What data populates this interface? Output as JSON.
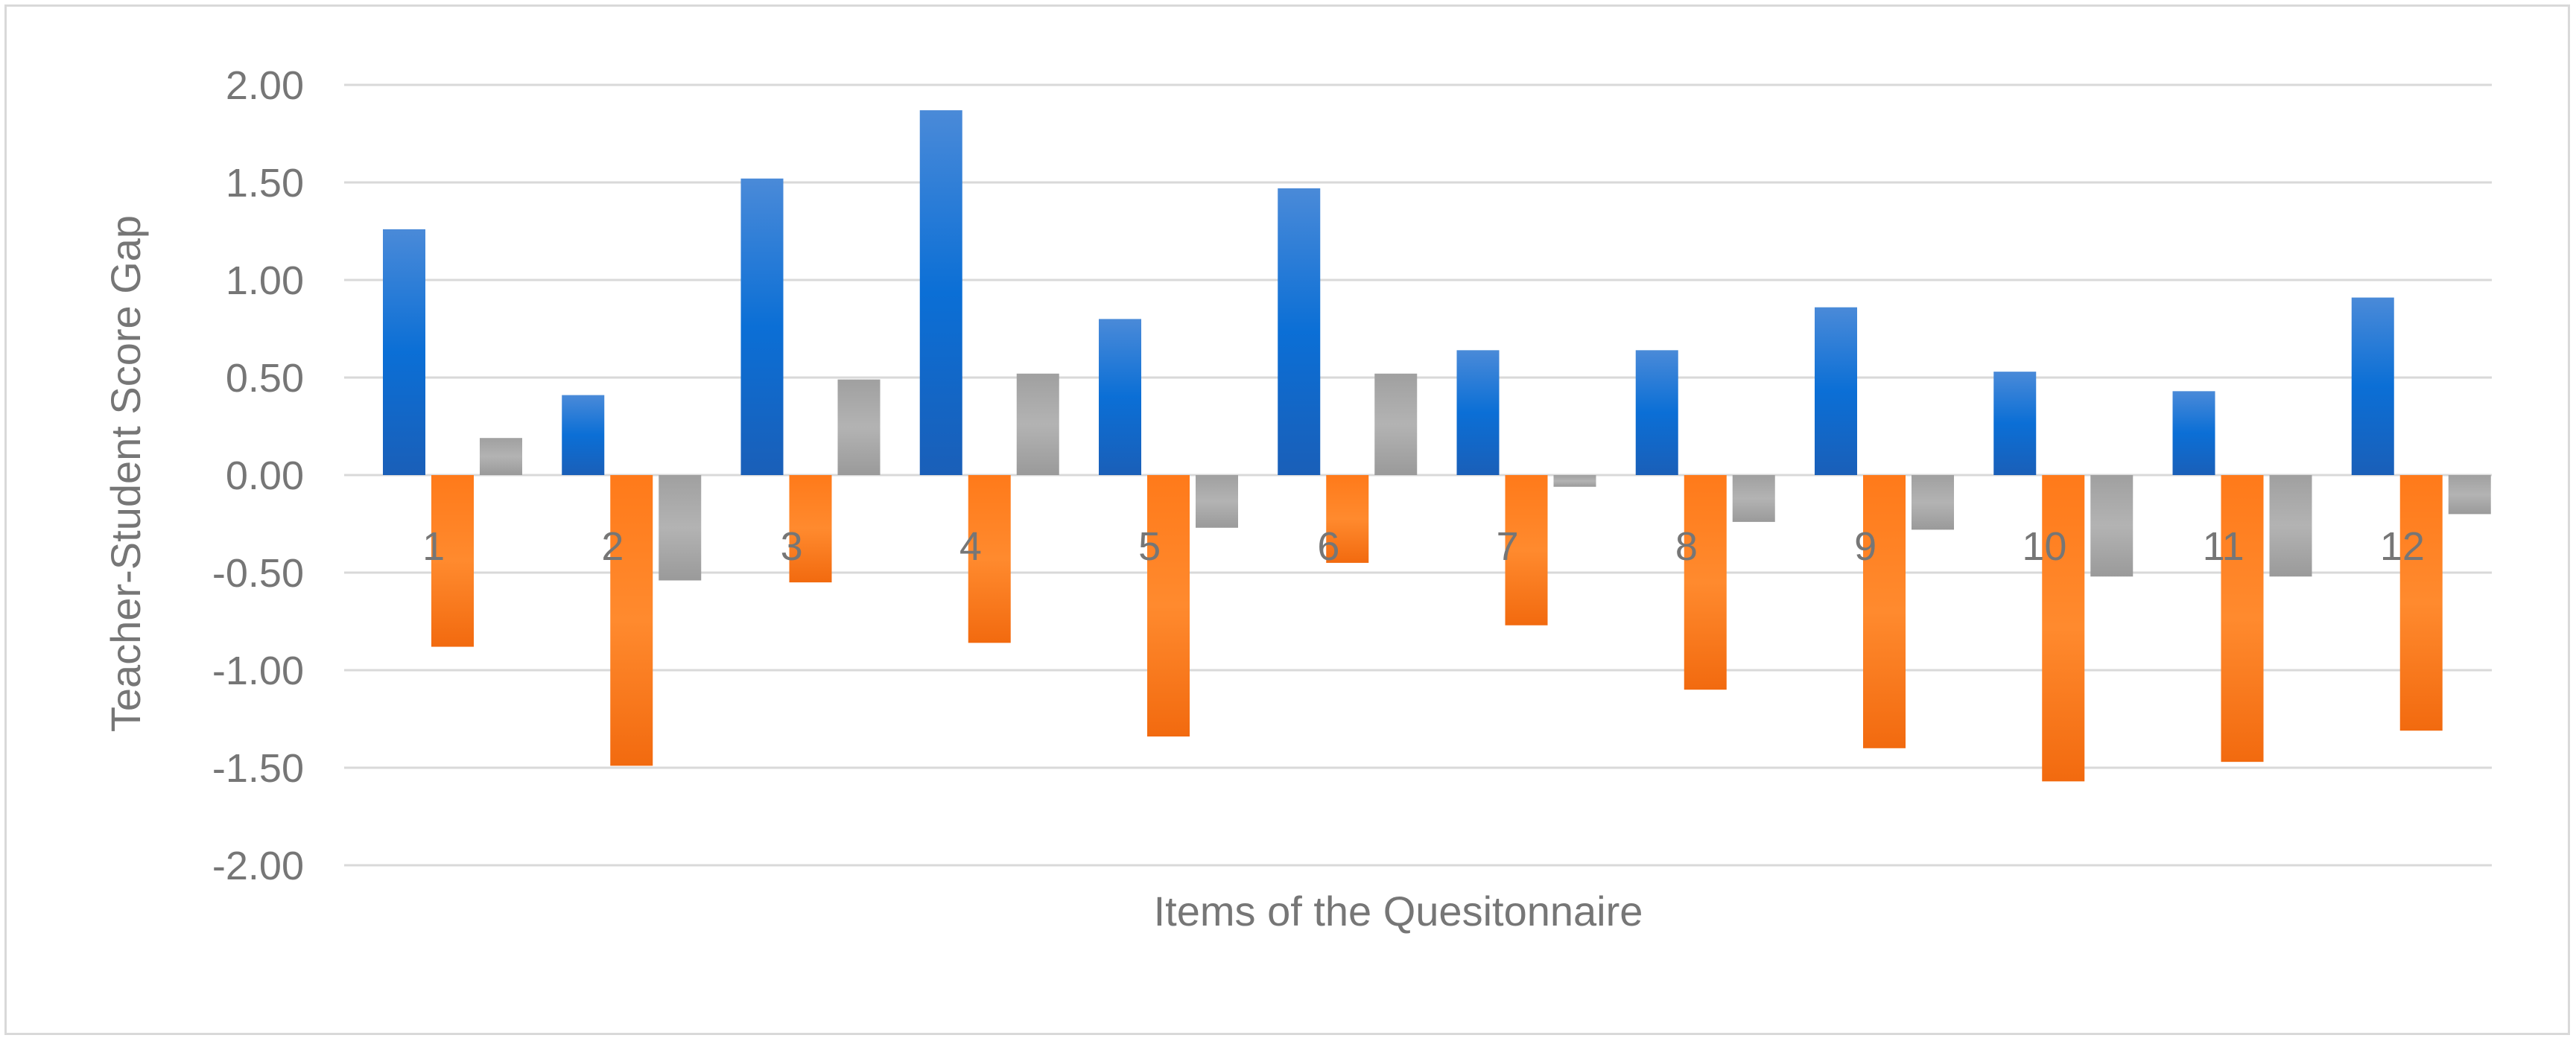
{
  "chart_data": {
    "type": "bar",
    "title": "",
    "xlabel": "Items of the Quesitonnaire",
    "ylabel": "Teacher-Student Score Gap",
    "ylim": [
      -2.0,
      2.0
    ],
    "yticks": [
      "2.00",
      "1.50",
      "1.00",
      "0.50",
      "0.00",
      "-0.50",
      "-1.00",
      "-1.50",
      "-2.00"
    ],
    "categories": [
      "1",
      "2",
      "3",
      "4",
      "5",
      "6",
      "7",
      "8",
      "9",
      "10",
      "11",
      "12"
    ],
    "grid": "horizontal",
    "legend": "none",
    "series": [
      {
        "color": "#1f6fd1",
        "values": [
          1.26,
          0.41,
          1.52,
          1.87,
          0.8,
          1.47,
          0.64,
          0.64,
          0.86,
          0.53,
          0.43,
          0.91
        ]
      },
      {
        "color": "#ff7f1f",
        "values": [
          -0.88,
          -1.49,
          -0.55,
          -0.86,
          -1.34,
          -0.45,
          -0.77,
          -1.1,
          -1.4,
          -1.57,
          -1.47,
          -1.31
        ]
      },
      {
        "color": "#a5a5a5",
        "values": [
          0.19,
          -0.54,
          0.49,
          0.52,
          -0.27,
          0.52,
          -0.06,
          -0.24,
          -0.28,
          -0.52,
          -0.52,
          -0.2
        ]
      }
    ]
  }
}
